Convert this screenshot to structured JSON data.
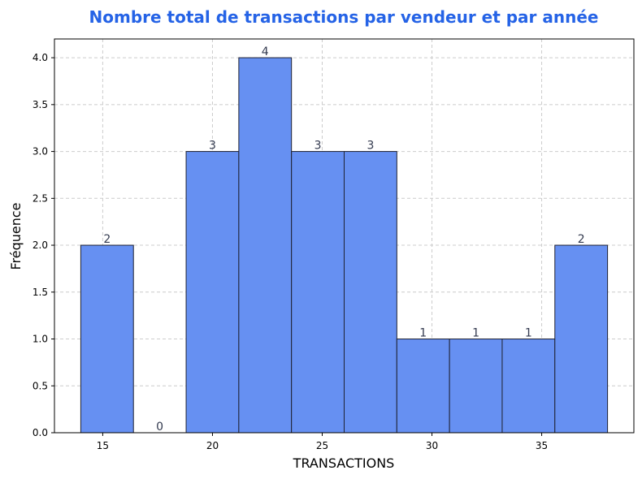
{
  "chart_data": {
    "type": "bar",
    "title": "Nombre total de transactions par vendeur et par année",
    "xlabel": "TRANSACTIONS",
    "ylabel": "Fréquence",
    "bins": [
      {
        "start": 14.0,
        "end": 16.4,
        "count": 2,
        "label": "2"
      },
      {
        "start": 16.4,
        "end": 18.8,
        "count": 0,
        "label": "0"
      },
      {
        "start": 18.8,
        "end": 21.2,
        "count": 3,
        "label": "3"
      },
      {
        "start": 21.2,
        "end": 23.6,
        "count": 4,
        "label": "4"
      },
      {
        "start": 23.6,
        "end": 26.0,
        "count": 3,
        "label": "3"
      },
      {
        "start": 26.0,
        "end": 28.4,
        "count": 3,
        "label": "3"
      },
      {
        "start": 28.4,
        "end": 30.8,
        "count": 1,
        "label": "1"
      },
      {
        "start": 30.8,
        "end": 33.2,
        "count": 1,
        "label": "1"
      },
      {
        "start": 33.2,
        "end": 35.6,
        "count": 1,
        "label": "1"
      },
      {
        "start": 35.6,
        "end": 38.0,
        "count": 2,
        "label": "2"
      }
    ],
    "xlim": [
      12.8,
      39.2
    ],
    "ylim": [
      0,
      4.2
    ],
    "xticks": [
      15,
      20,
      25,
      30,
      35
    ],
    "yticks": [
      "0.0",
      "0.5",
      "1.0",
      "1.5",
      "2.0",
      "2.5",
      "3.0",
      "3.5",
      "4.0"
    ],
    "grid": true,
    "colors": {
      "bar_fill": "#6690f2",
      "bar_edge": "#1f2233",
      "title": "#2563e6",
      "bar_label": "#333a4f"
    }
  }
}
